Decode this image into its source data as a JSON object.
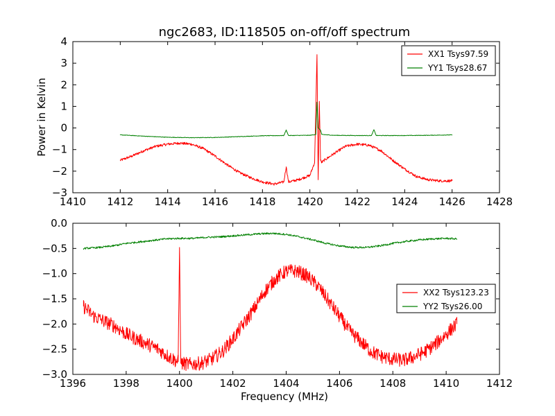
{
  "chart_data": [
    {
      "type": "line",
      "title": "ngc2683, ID:118505 on-off/off spectrum",
      "xlabel": "",
      "ylabel": "Power in Kelvin",
      "xlim": [
        1410,
        1428
      ],
      "ylim": [
        -3,
        4
      ],
      "xticks": [
        "1410",
        "1412",
        "1414",
        "1416",
        "1418",
        "1420",
        "1422",
        "1424",
        "1426",
        "1428"
      ],
      "yticks": [
        "−3",
        "−2",
        "−1",
        "0",
        "1",
        "2",
        "3",
        "4"
      ],
      "grid": false,
      "legend_position": "top-right",
      "series": [
        {
          "name": "XX1 Tsys97.59",
          "color": "#ff0000",
          "x": [
            1412.0,
            1412.5,
            1413.0,
            1413.5,
            1414.0,
            1414.5,
            1415.0,
            1415.5,
            1416.0,
            1416.5,
            1417.0,
            1417.5,
            1418.0,
            1418.5,
            1418.9,
            1419.0,
            1419.1,
            1419.5,
            1420.0,
            1420.2,
            1420.3,
            1420.35,
            1420.4,
            1420.45,
            1420.5,
            1420.6,
            1421.0,
            1421.5,
            1422.0,
            1422.5,
            1423.0,
            1423.5,
            1424.0,
            1424.5,
            1425.0,
            1425.5,
            1426.0
          ],
          "y": [
            -1.5,
            -1.3,
            -1.05,
            -0.85,
            -0.75,
            -0.7,
            -0.75,
            -0.95,
            -1.3,
            -1.7,
            -2.05,
            -2.3,
            -2.5,
            -2.6,
            -2.5,
            -1.8,
            -2.5,
            -2.4,
            -2.2,
            -1.6,
            3.4,
            -2.4,
            1.2,
            -1.5,
            -1.6,
            -1.5,
            -1.2,
            -0.85,
            -0.75,
            -0.8,
            -1.05,
            -1.5,
            -1.9,
            -2.25,
            -2.4,
            -2.45,
            -2.45
          ]
        },
        {
          "name": "YY1 Tsys28.67",
          "color": "#008000",
          "x": [
            1412.0,
            1413.0,
            1414.0,
            1415.0,
            1416.0,
            1417.0,
            1418.0,
            1418.9,
            1419.0,
            1419.1,
            1420.0,
            1420.25,
            1420.3,
            1420.35,
            1420.45,
            1420.5,
            1421.0,
            1422.0,
            1422.6,
            1422.7,
            1422.8,
            1423.0,
            1424.0,
            1425.0,
            1426.0
          ],
          "y": [
            -0.32,
            -0.38,
            -0.43,
            -0.45,
            -0.44,
            -0.4,
            -0.36,
            -0.35,
            -0.1,
            -0.35,
            -0.34,
            -0.3,
            1.2,
            0.0,
            -0.1,
            -0.3,
            -0.34,
            -0.35,
            -0.35,
            -0.08,
            -0.35,
            -0.35,
            -0.35,
            -0.34,
            -0.32
          ]
        }
      ]
    },
    {
      "type": "line",
      "title": "",
      "xlabel": "Frequency (MHz)",
      "ylabel": "",
      "xlim": [
        1396,
        1412
      ],
      "ylim": [
        -3.0,
        0.0
      ],
      "xticks": [
        "1396",
        "1398",
        "1400",
        "1402",
        "1404",
        "1406",
        "1408",
        "1410",
        "1412"
      ],
      "yticks": [
        "−3.0",
        "−2.5",
        "−2.0",
        "−1.5",
        "−1.0",
        "−0.5",
        "0.0"
      ],
      "grid": false,
      "legend_position": "center-right",
      "series": [
        {
          "name": "XX2 Tsys123.23",
          "color": "#ff0000",
          "x": [
            1396.4,
            1396.8,
            1397.2,
            1397.6,
            1398.0,
            1398.4,
            1398.8,
            1399.2,
            1399.6,
            1399.95,
            1400.0,
            1400.05,
            1400.4,
            1400.8,
            1401.2,
            1401.6,
            1402.0,
            1402.4,
            1402.8,
            1403.2,
            1403.6,
            1404.0,
            1404.4,
            1404.8,
            1405.2,
            1405.6,
            1406.0,
            1406.4,
            1406.8,
            1407.2,
            1407.6,
            1408.0,
            1408.4,
            1408.8,
            1409.2,
            1409.6,
            1410.0,
            1410.4
          ],
          "y": [
            -1.65,
            -1.85,
            -1.95,
            -2.05,
            -2.2,
            -2.3,
            -2.4,
            -2.5,
            -2.65,
            -2.75,
            -0.48,
            -2.78,
            -2.8,
            -2.78,
            -2.7,
            -2.55,
            -2.3,
            -2.0,
            -1.7,
            -1.35,
            -1.1,
            -0.95,
            -0.95,
            -1.05,
            -1.25,
            -1.55,
            -1.85,
            -2.15,
            -2.35,
            -2.55,
            -2.65,
            -2.7,
            -2.72,
            -2.65,
            -2.55,
            -2.4,
            -2.2,
            -2.0
          ]
        },
        {
          "name": "YY2 Tsys26.00",
          "color": "#008000",
          "x": [
            1396.4,
            1397.0,
            1397.5,
            1398.0,
            1398.5,
            1399.0,
            1399.5,
            1400.0,
            1400.5,
            1401.0,
            1401.5,
            1402.0,
            1402.5,
            1403.0,
            1403.5,
            1404.0,
            1404.5,
            1405.0,
            1405.5,
            1406.0,
            1406.5,
            1407.0,
            1407.5,
            1408.0,
            1408.5,
            1409.0,
            1409.5,
            1410.0,
            1410.4
          ],
          "y": [
            -0.5,
            -0.48,
            -0.45,
            -0.4,
            -0.37,
            -0.34,
            -0.31,
            -0.3,
            -0.3,
            -0.28,
            -0.27,
            -0.25,
            -0.23,
            -0.21,
            -0.2,
            -0.22,
            -0.27,
            -0.33,
            -0.4,
            -0.45,
            -0.48,
            -0.48,
            -0.45,
            -0.4,
            -0.36,
            -0.33,
            -0.31,
            -0.3,
            -0.31
          ]
        }
      ]
    }
  ]
}
